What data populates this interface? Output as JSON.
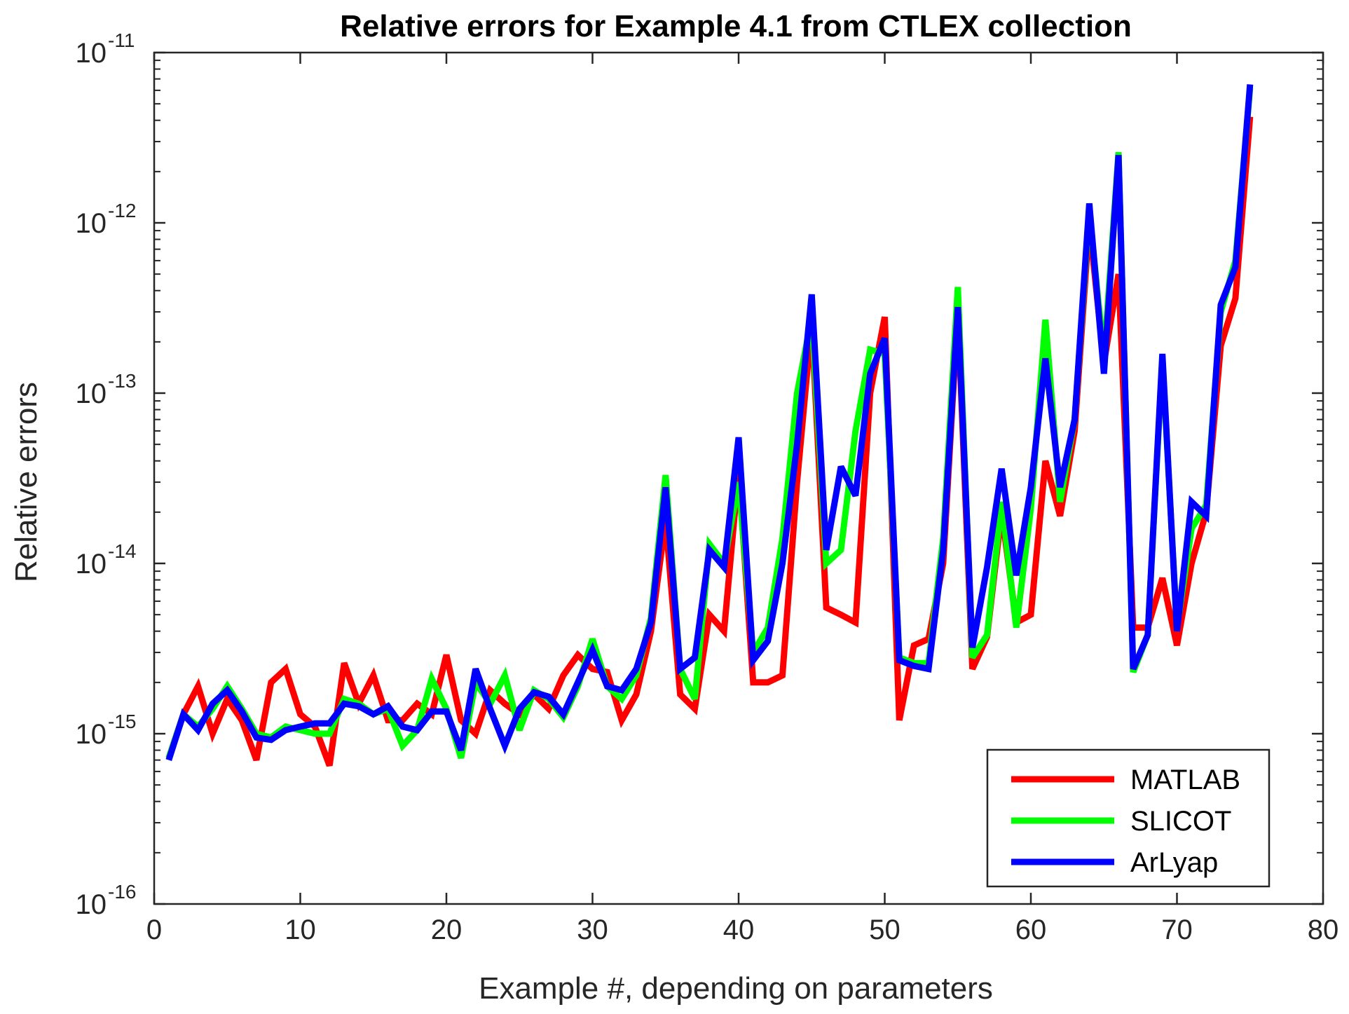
{
  "chart_data": {
    "type": "line",
    "title": "Relative errors for Example 4.1 from CTLEX collection",
    "xlabel": "Example #, depending on parameters",
    "ylabel": "Relative errors",
    "xlim": [
      0,
      80
    ],
    "ylim": [
      1e-16,
      1e-11
    ],
    "yscale": "log",
    "xticks": [
      0,
      10,
      20,
      30,
      40,
      50,
      60,
      70,
      80
    ],
    "yticks": [
      {
        "base": "10",
        "exp": "-16",
        "value": 1e-16
      },
      {
        "base": "10",
        "exp": "-15",
        "value": 1e-15
      },
      {
        "base": "10",
        "exp": "-14",
        "value": 1e-14
      },
      {
        "base": "10",
        "exp": "-13",
        "value": 1e-13
      },
      {
        "base": "10",
        "exp": "-12",
        "value": 1e-12
      },
      {
        "base": "10",
        "exp": "-11",
        "value": 1e-11
      }
    ],
    "grid": false,
    "legend_position": "bottom-right",
    "series": [
      {
        "name": "MATLAB",
        "color": "#ff0000",
        "x": [
          1,
          2,
          3,
          4,
          5,
          6,
          7,
          8,
          9,
          10,
          11,
          12,
          13,
          14,
          15,
          16,
          17,
          18,
          19,
          20,
          21,
          22,
          23,
          24,
          25,
          26,
          27,
          28,
          29,
          30,
          31,
          32,
          33,
          34,
          35,
          36,
          37,
          38,
          39,
          40,
          41,
          42,
          43,
          44,
          45,
          46,
          47,
          48,
          49,
          50,
          51,
          52,
          53,
          54,
          55,
          56,
          57,
          58,
          59,
          60,
          61,
          62,
          63,
          64,
          65,
          66,
          67,
          68,
          69,
          70,
          71,
          72,
          73,
          74,
          75
        ],
        "values": [
          7.2e-16,
          1.3e-15,
          1.9e-15,
          1e-15,
          1.6e-15,
          1.2e-15,
          7e-16,
          2e-15,
          2.4e-15,
          1.3e-15,
          1.1e-15,
          6.5e-16,
          2.6e-15,
          1.5e-15,
          2.2e-15,
          1.2e-15,
          1.2e-15,
          1.5e-15,
          1.3e-15,
          2.9e-15,
          1.2e-15,
          1e-15,
          1.8e-15,
          1.5e-15,
          1.3e-15,
          1.7e-15,
          1.4e-15,
          2.2e-15,
          2.9e-15,
          2.4e-15,
          2.3e-15,
          1.2e-15,
          1.7e-15,
          4e-15,
          1.8e-14,
          1.7e-15,
          1.4e-15,
          5e-15,
          4e-15,
          3.5e-14,
          2e-15,
          2e-15,
          2.2e-15,
          3e-14,
          2.6e-13,
          5.5e-15,
          5e-15,
          4.5e-15,
          1e-13,
          2.8e-13,
          1.2e-15,
          3.3e-15,
          3.6e-15,
          1e-14,
          3e-13,
          2.4e-15,
          3.7e-15,
          2e-14,
          4.5e-15,
          5e-15,
          4e-14,
          1.9e-14,
          6e-14,
          1e-12,
          1.5e-13,
          5e-13,
          4.2e-15,
          4.2e-15,
          8.2e-15,
          3.3e-15,
          1e-14,
          2e-14,
          1.9e-13,
          3.6e-13,
          4.2e-12
        ]
      },
      {
        "name": "SLICOT",
        "color": "#00ff00",
        "x": [
          1,
          2,
          3,
          4,
          5,
          6,
          7,
          8,
          9,
          10,
          11,
          12,
          13,
          14,
          15,
          16,
          17,
          18,
          19,
          20,
          21,
          22,
          23,
          24,
          25,
          26,
          27,
          28,
          29,
          30,
          31,
          32,
          33,
          34,
          35,
          36,
          37,
          38,
          39,
          40,
          41,
          42,
          43,
          44,
          45,
          46,
          47,
          48,
          49,
          50,
          51,
          52,
          53,
          54,
          55,
          56,
          57,
          58,
          59,
          60,
          61,
          62,
          63,
          64,
          65,
          66,
          67,
          68,
          69,
          70,
          71,
          72,
          73,
          74,
          75
        ],
        "values": [
          7.2e-16,
          1.3e-15,
          1.1e-15,
          1.4e-15,
          1.9e-15,
          1.4e-15,
          1e-15,
          9.5e-16,
          1.1e-15,
          1.05e-15,
          1e-15,
          1e-15,
          1.6e-15,
          1.5e-15,
          1.3e-15,
          1.4e-15,
          8.5e-16,
          1.05e-15,
          2.1e-15,
          1.4e-15,
          7.2e-16,
          2e-15,
          1.5e-15,
          2.2e-15,
          1.05e-15,
          1.8e-15,
          1.6e-15,
          1.25e-15,
          1.9e-15,
          3.6e-15,
          1.9e-15,
          1.6e-15,
          2.2e-15,
          4.8e-15,
          3.3e-14,
          2.4e-15,
          1.6e-15,
          1.3e-14,
          1e-14,
          3e-14,
          3e-15,
          4.2e-15,
          1.4e-14,
          1e-13,
          2.8e-13,
          1e-14,
          1.2e-14,
          6e-14,
          1.8e-13,
          1.7e-13,
          2.8e-15,
          2.6e-15,
          2.6e-15,
          1.4e-14,
          4.2e-13,
          2.8e-15,
          3.8e-15,
          2.3e-14,
          4.2e-15,
          2.1e-14,
          2.7e-13,
          2.3e-14,
          7e-14,
          1.2e-12,
          1.6e-13,
          2.6e-12,
          2.3e-15,
          3.8e-15,
          1.6e-13,
          4.2e-15,
          1.6e-14,
          2.2e-14,
          3e-13,
          6e-13,
          6.2e-12
        ]
      },
      {
        "name": "ArLyap",
        "color": "#0000ff",
        "x": [
          1,
          2,
          3,
          4,
          5,
          6,
          7,
          8,
          9,
          10,
          11,
          12,
          13,
          14,
          15,
          16,
          17,
          18,
          19,
          20,
          21,
          22,
          23,
          24,
          25,
          26,
          27,
          28,
          29,
          30,
          31,
          32,
          33,
          34,
          35,
          36,
          37,
          38,
          39,
          40,
          41,
          42,
          43,
          44,
          45,
          46,
          47,
          48,
          49,
          50,
          51,
          52,
          53,
          54,
          55,
          56,
          57,
          58,
          59,
          60,
          61,
          62,
          63,
          64,
          65,
          66,
          67,
          68,
          69,
          70,
          71,
          72,
          73,
          74,
          75
        ],
        "values": [
          7e-16,
          1.3e-15,
          1.05e-15,
          1.5e-15,
          1.8e-15,
          1.35e-15,
          9.5e-16,
          9.2e-16,
          1.05e-15,
          1.1e-15,
          1.15e-15,
          1.15e-15,
          1.5e-15,
          1.45e-15,
          1.3e-15,
          1.45e-15,
          1.1e-15,
          1.05e-15,
          1.35e-15,
          1.35e-15,
          8e-16,
          2.4e-15,
          1.4e-15,
          8.5e-16,
          1.4e-15,
          1.75e-15,
          1.65e-15,
          1.3e-15,
          2e-15,
          3.1e-15,
          1.9e-15,
          1.8e-15,
          2.4e-15,
          4.5e-15,
          2.8e-14,
          2.4e-15,
          2.8e-15,
          1.2e-14,
          9.5e-15,
          5.5e-14,
          2.7e-15,
          3.5e-15,
          1e-14,
          5e-14,
          3.8e-13,
          1.2e-14,
          3.7e-14,
          2.5e-14,
          1.3e-13,
          2.1e-13,
          2.7e-15,
          2.5e-15,
          2.4e-15,
          1.2e-14,
          3.2e-13,
          3.2e-15,
          9.5e-15,
          3.6e-14,
          8.5e-15,
          2.8e-14,
          1.6e-13,
          2.8e-14,
          7e-14,
          1.3e-12,
          1.3e-13,
          2.5e-12,
          2.4e-15,
          3.8e-15,
          1.7e-13,
          4e-15,
          2.3e-14,
          1.9e-14,
          3.3e-13,
          5.5e-13,
          6.5e-12
        ]
      }
    ]
  }
}
